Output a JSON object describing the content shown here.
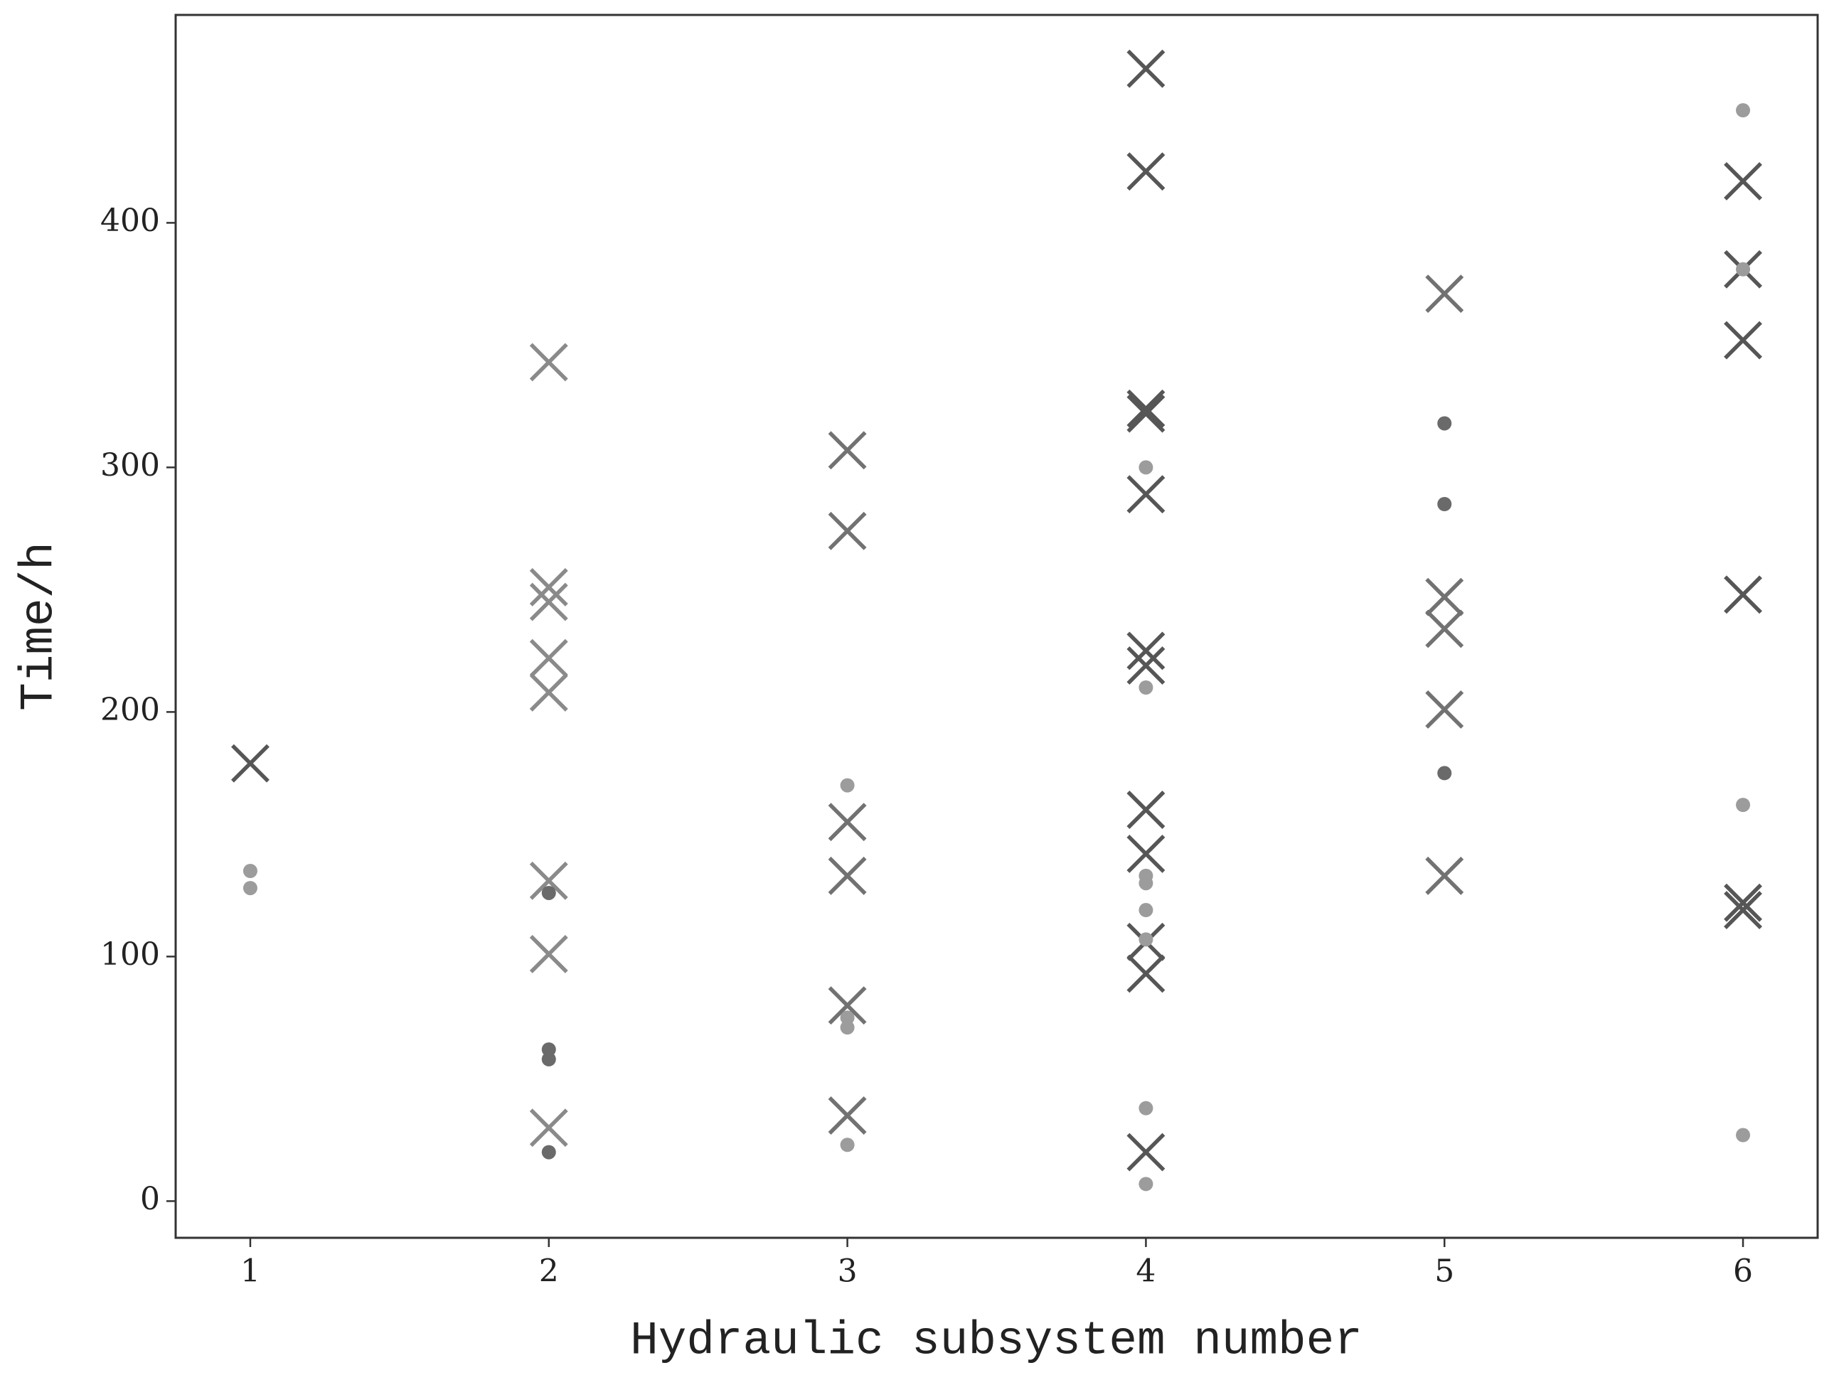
{
  "chart_data": {
    "type": "scatter",
    "xlabel": "Hydraulic subsystem number",
    "ylabel": "Time/h",
    "xlim": [
      0.75,
      6.25
    ],
    "ylim": [
      -15,
      485
    ],
    "xticks": [
      1,
      2,
      3,
      4,
      5,
      6
    ],
    "yticks": [
      0,
      100,
      200,
      300,
      400
    ],
    "series": [
      {
        "marker": "x",
        "color": "#565656",
        "x": [
          1,
          4,
          4,
          4,
          4,
          4,
          4,
          4,
          4,
          4,
          4,
          4,
          4,
          6,
          6,
          6,
          6,
          6,
          6
        ],
        "values": [
          179,
          463,
          421,
          324,
          322,
          289,
          225,
          219,
          160,
          142,
          106,
          93,
          20,
          417,
          381,
          352,
          248,
          122,
          119
        ]
      },
      {
        "marker": "x",
        "color": "#727272",
        "x": [
          3,
          3,
          3,
          3,
          3,
          3,
          5,
          5,
          5,
          5,
          5
        ],
        "values": [
          307,
          274,
          155,
          133,
          80,
          35,
          371,
          247,
          234,
          201,
          133
        ]
      },
      {
        "marker": "x",
        "color": "#8a8a8a",
        "x": [
          2,
          2,
          2,
          2,
          2,
          2,
          2,
          2
        ],
        "values": [
          343,
          251,
          245,
          222,
          208,
          131,
          101,
          30
        ]
      },
      {
        "marker": "dot",
        "color": "#6a6a6a",
        "x": [
          2,
          2,
          2,
          2,
          5,
          5,
          5
        ],
        "values": [
          126,
          62,
          58,
          20,
          318,
          285,
          175
        ]
      },
      {
        "marker": "dot",
        "color": "#9c9c9c",
        "x": [
          1,
          1,
          3,
          3,
          3,
          3,
          4,
          4,
          4,
          4,
          4,
          4,
          4,
          4,
          6,
          6,
          6,
          6
        ],
        "values": [
          135,
          128,
          170,
          75,
          71,
          23,
          300,
          210,
          133,
          130,
          119,
          107,
          38,
          7,
          446,
          381,
          162,
          27
        ]
      }
    ]
  }
}
